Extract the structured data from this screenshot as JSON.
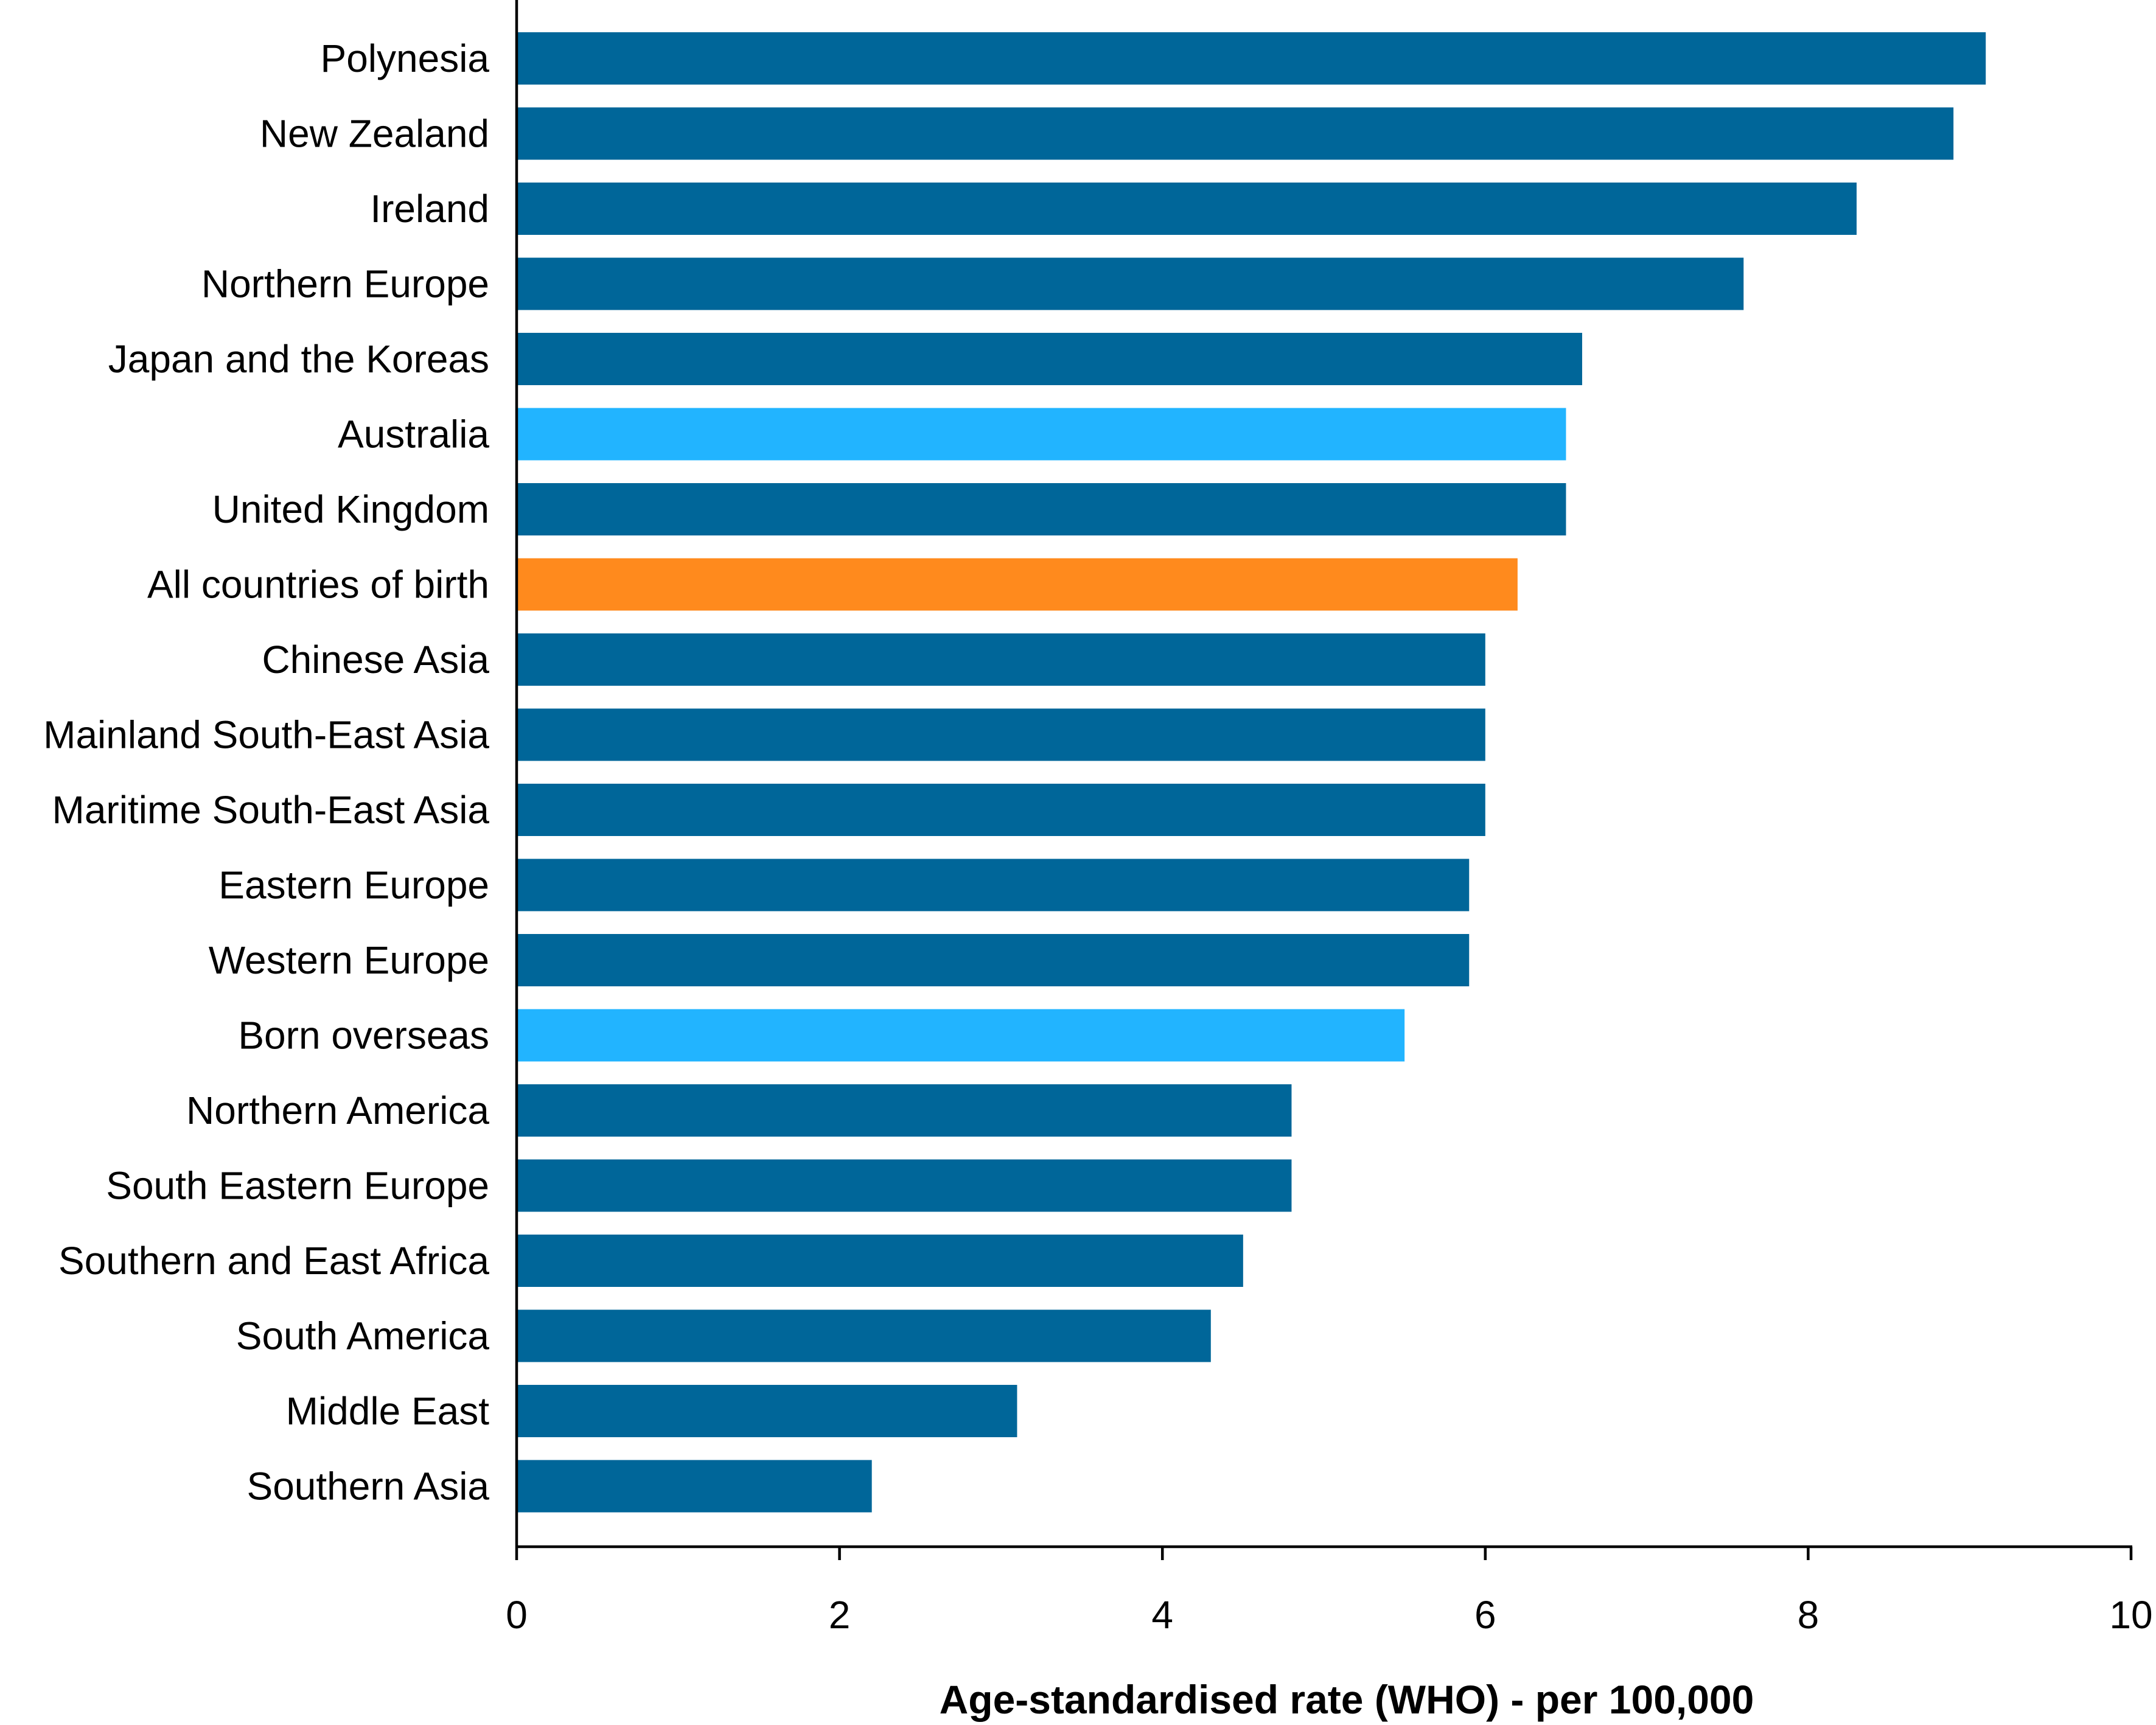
{
  "chart_data": {
    "type": "bar",
    "orientation": "horizontal",
    "categories": [
      "Polynesia",
      "New Zealand",
      "Ireland",
      "Northern Europe",
      "Japan and the Koreas",
      "Australia",
      "United Kingdom",
      "All countries of birth",
      "Chinese Asia",
      "Mainland South-East Asia",
      "Maritime South-East Asia",
      "Eastern Europe",
      "Western Europe",
      "Born overseas",
      "Northern America",
      "South Eastern Europe",
      "Southern and East Africa",
      "South America",
      "Middle East",
      "Southern Asia"
    ],
    "values": [
      9.1,
      8.9,
      8.3,
      7.6,
      6.6,
      6.5,
      6.5,
      6.2,
      6.0,
      6.0,
      6.0,
      5.9,
      5.9,
      5.5,
      4.8,
      4.8,
      4.5,
      4.3,
      3.1,
      2.2
    ],
    "bar_colors": [
      "#006699",
      "#006699",
      "#006699",
      "#006699",
      "#006699",
      "#22B4FF",
      "#006699",
      "#FF8A1D",
      "#006699",
      "#006699",
      "#006699",
      "#006699",
      "#006699",
      "#22B4FF",
      "#006699",
      "#006699",
      "#006699",
      "#006699",
      "#006699",
      "#006699"
    ],
    "xlabel": "Age-standardised rate (WHO) - per 100,000",
    "ylabel": "",
    "title": "",
    "xlim": [
      0,
      10
    ],
    "xticks": [
      0,
      2,
      4,
      6,
      8,
      10
    ],
    "xtick_labels": [
      "0",
      "2",
      "4",
      "6",
      "8",
      "10"
    ],
    "grid": false,
    "legend": "none"
  }
}
